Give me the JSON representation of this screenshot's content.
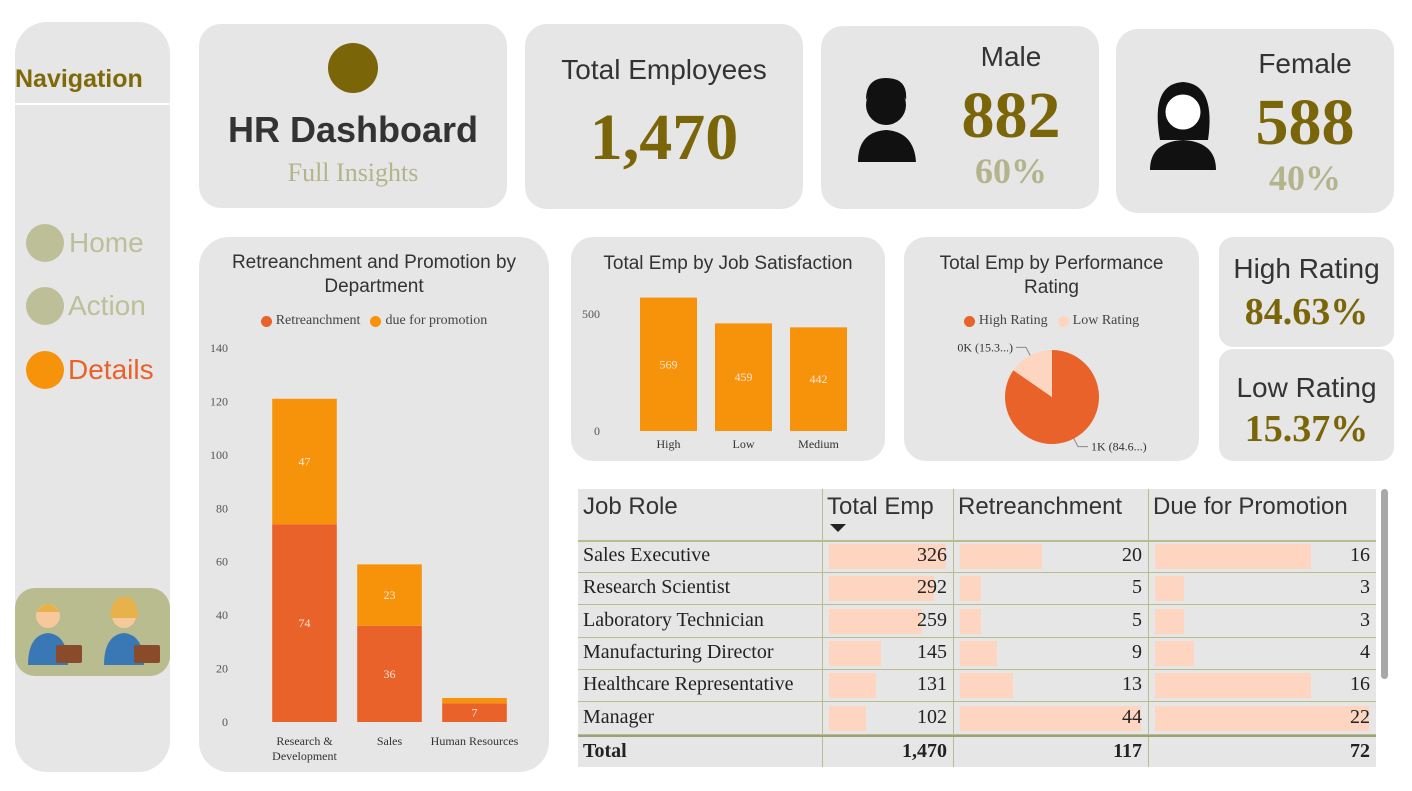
{
  "navigation": {
    "title": "Navigation",
    "items": [
      "Home",
      "Action",
      "Details"
    ]
  },
  "header": {
    "title": "HR Dashboard",
    "subtitle": "Full Insights"
  },
  "kpis": {
    "total_employees": {
      "label": "Total Employees",
      "value": "1,470"
    },
    "male": {
      "label": "Male",
      "value": 882,
      "share": "60%"
    },
    "female": {
      "label": "Female",
      "value": 588,
      "share": "40%"
    },
    "high_rating": {
      "label": "High Rating",
      "value": "84.63%"
    },
    "low_rating": {
      "label": "Low Rating",
      "value": "15.37%"
    }
  },
  "chart_data": [
    {
      "type": "stacked_bar",
      "title": "Retreanchment and Promotion by Department",
      "categories": [
        "Research & Development",
        "Sales",
        "Human Resources"
      ],
      "series": [
        {
          "name": "Retreanchment",
          "color": "#e8622a",
          "values": [
            74,
            36,
            7
          ]
        },
        {
          "name": "due for promotion",
          "color": "#f7930a",
          "values": [
            47,
            23,
            2
          ]
        }
      ],
      "ylim": [
        0,
        140
      ],
      "yticks": [
        0,
        20,
        40,
        60,
        80,
        100,
        120,
        140
      ],
      "legend": "top"
    },
    {
      "type": "bar",
      "title": "Total Emp by Job Satisfaction",
      "categories": [
        "High",
        "Low",
        "Medium"
      ],
      "values": [
        569,
        459,
        442
      ],
      "color": "#f7930a",
      "ylim": [
        0,
        580
      ],
      "yticks": [
        0,
        500
      ]
    },
    {
      "type": "pie",
      "title": "Total Emp by Performance Rating",
      "categories": [
        "High Rating",
        "Low Rating"
      ],
      "values": [
        1244,
        226
      ],
      "value_labels": [
        "1K (84.6...)",
        "0K (15.3...)"
      ],
      "colors": [
        "#e8622a",
        "#fdd5c0"
      ],
      "legend": "top"
    }
  ],
  "table": {
    "columns": [
      "Job Role",
      "Total Emp",
      "Retreanchment",
      "Due for Promotion"
    ],
    "rows": [
      [
        "Sales Executive",
        326,
        20,
        16
      ],
      [
        "Research Scientist",
        292,
        5,
        3
      ],
      [
        "Laboratory Technician",
        259,
        5,
        3
      ],
      [
        "Manufacturing Director",
        145,
        9,
        4
      ],
      [
        "Healthcare Representative",
        131,
        13,
        16
      ],
      [
        "Manager",
        102,
        44,
        22
      ]
    ],
    "total": [
      "Total",
      "1,470",
      117,
      72
    ],
    "bar_color": "#fdd5c0"
  }
}
